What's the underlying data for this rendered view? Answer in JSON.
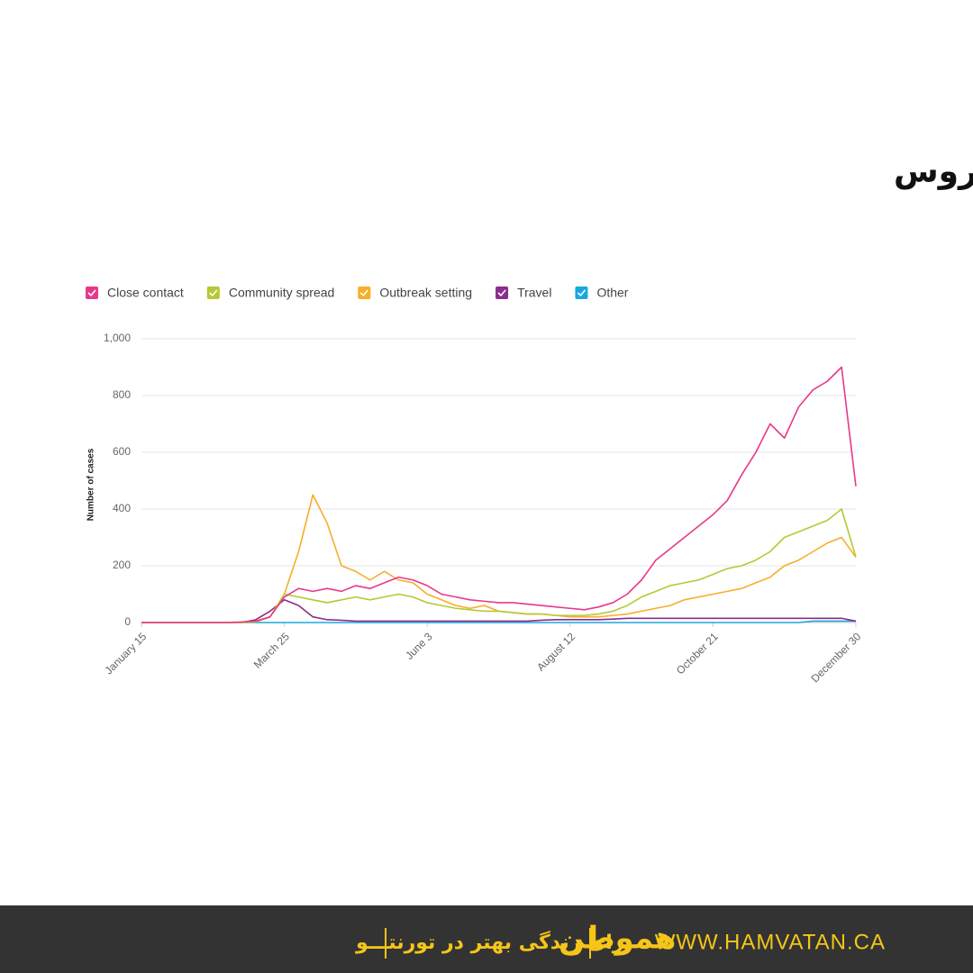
{
  "chart_data": {
    "type": "line",
    "title": "منبع احتمالی ابتلا به ویروس",
    "ylabel": "Number of cases",
    "x": [
      0,
      7,
      14,
      21,
      28,
      35,
      42,
      49,
      56,
      63,
      70,
      77,
      84,
      91,
      98,
      105,
      112,
      119,
      126,
      133,
      140,
      147,
      154,
      161,
      168,
      175,
      182,
      189,
      196,
      203,
      210,
      217,
      224,
      231,
      238,
      245,
      252,
      259,
      266,
      273,
      280,
      287,
      294,
      301,
      308,
      315,
      322,
      329,
      336,
      343,
      350
    ],
    "xlim": [
      0,
      350
    ],
    "xticks": [
      {
        "value": 0,
        "label": "January 15"
      },
      {
        "value": 70,
        "label": "March 25"
      },
      {
        "value": 140,
        "label": "June 3"
      },
      {
        "value": 210,
        "label": "August 12"
      },
      {
        "value": 280,
        "label": "October 21"
      },
      {
        "value": 350,
        "label": "December 30"
      }
    ],
    "ylim": [
      0,
      1000
    ],
    "yticks": [
      0,
      200,
      400,
      600,
      800,
      {
        "value": 1000,
        "label": "1,000"
      }
    ],
    "grid": true,
    "legend": "top-left",
    "series": [
      {
        "name": "Close contact",
        "color": "#e8388a",
        "values": [
          0,
          0,
          0,
          0,
          0,
          0,
          0,
          2,
          5,
          20,
          90,
          120,
          110,
          120,
          110,
          130,
          120,
          140,
          160,
          150,
          130,
          100,
          90,
          80,
          75,
          70,
          70,
          65,
          60,
          55,
          50,
          45,
          55,
          70,
          100,
          150,
          220,
          260,
          300,
          340,
          380,
          430,
          520,
          600,
          700,
          650,
          760,
          820,
          850,
          900,
          480
        ]
      },
      {
        "name": "Community spread",
        "color": "#b5c935",
        "values": [
          0,
          0,
          0,
          0,
          0,
          0,
          0,
          0,
          2,
          20,
          100,
          90,
          80,
          70,
          80,
          90,
          80,
          90,
          100,
          90,
          70,
          60,
          50,
          45,
          40,
          40,
          35,
          30,
          30,
          25,
          25,
          25,
          30,
          40,
          60,
          90,
          110,
          130,
          140,
          150,
          170,
          190,
          200,
          220,
          250,
          300,
          320,
          340,
          360,
          400,
          230
        ]
      },
      {
        "name": "Outbreak setting",
        "color": "#f7ae2a",
        "values": [
          0,
          0,
          0,
          0,
          0,
          0,
          0,
          0,
          2,
          20,
          100,
          250,
          450,
          350,
          200,
          180,
          150,
          180,
          150,
          140,
          100,
          80,
          60,
          50,
          60,
          40,
          35,
          30,
          30,
          25,
          20,
          20,
          20,
          25,
          30,
          40,
          50,
          60,
          80,
          90,
          100,
          110,
          120,
          140,
          160,
          200,
          220,
          250,
          280,
          300,
          230
        ]
      },
      {
        "name": "Travel",
        "color": "#8b2d8b",
        "values": [
          0,
          0,
          0,
          0,
          0,
          0,
          0,
          0,
          10,
          40,
          80,
          60,
          20,
          10,
          8,
          5,
          5,
          5,
          5,
          5,
          5,
          5,
          5,
          5,
          5,
          5,
          5,
          5,
          8,
          10,
          10,
          10,
          10,
          12,
          15,
          15,
          15,
          15,
          15,
          15,
          15,
          15,
          15,
          15,
          15,
          15,
          15,
          15,
          15,
          15,
          5
        ]
      },
      {
        "name": "Other",
        "color": "#1aa7e0",
        "values": [
          0,
          0,
          0,
          0,
          0,
          0,
          0,
          0,
          0,
          0,
          0,
          0,
          0,
          0,
          0,
          0,
          0,
          0,
          0,
          0,
          0,
          0,
          0,
          0,
          0,
          0,
          0,
          0,
          0,
          0,
          0,
          0,
          0,
          0,
          0,
          0,
          0,
          0,
          0,
          0,
          0,
          0,
          0,
          0,
          0,
          0,
          0,
          5,
          5,
          5,
          5
        ]
      }
    ]
  },
  "footer": {
    "slogan": "برای زندگی بهتر در تورنتـــو",
    "logo": "هموطن",
    "url": "WWW.HAMVATAN.CA"
  }
}
